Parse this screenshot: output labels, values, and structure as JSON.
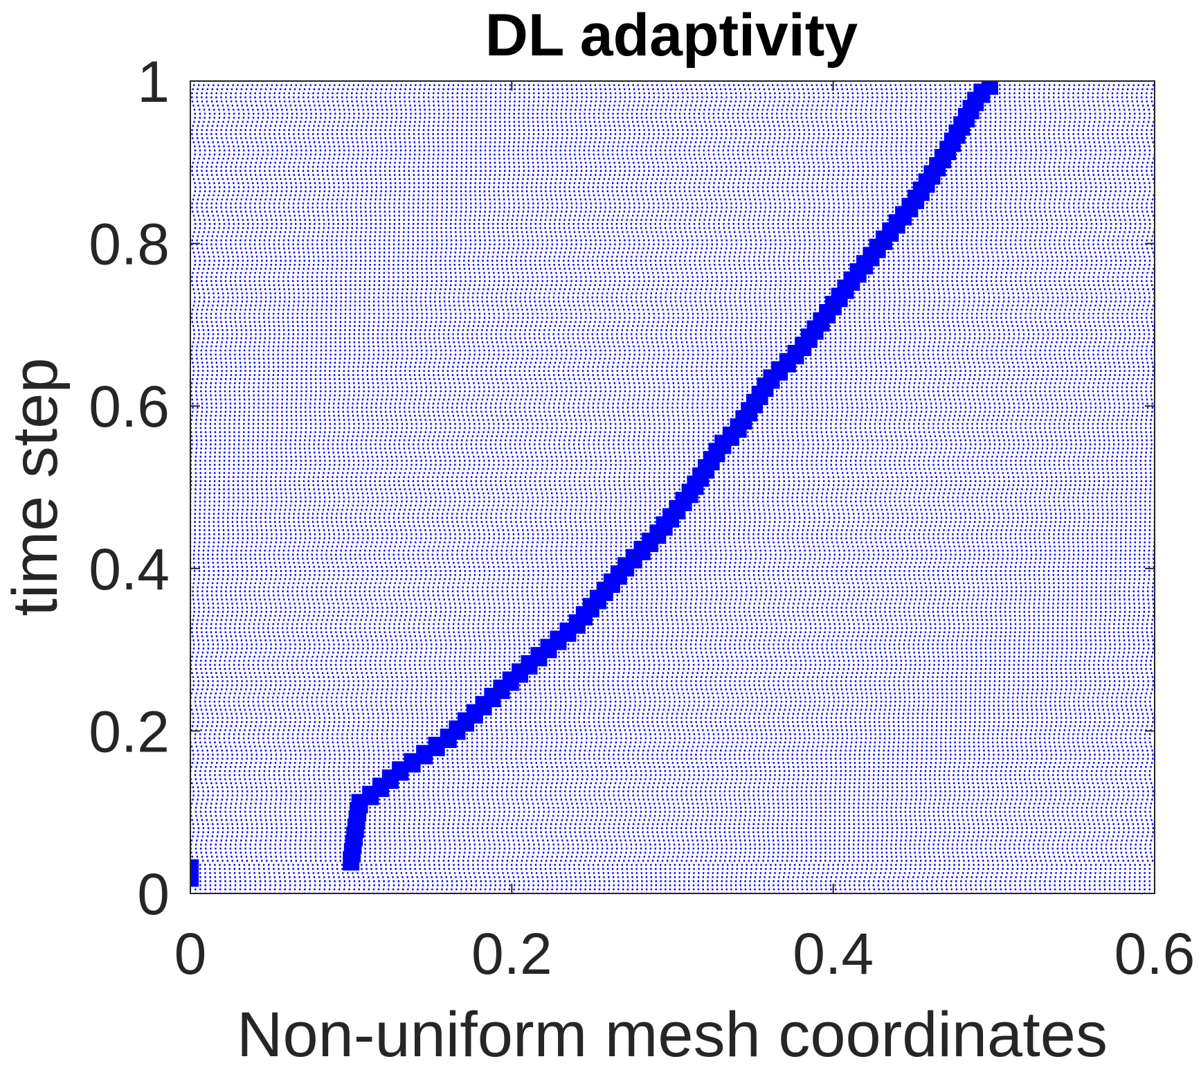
{
  "chart_data": {
    "type": "scatter",
    "title": "DL adaptivity",
    "xlabel": "Non-uniform mesh coordinates",
    "ylabel": "time step",
    "xlim": [
      0,
      0.6
    ],
    "ylim": [
      0,
      1
    ],
    "xticks": [
      0,
      0.2,
      0.4,
      0.6
    ],
    "yticks": [
      0,
      0.2,
      0.4,
      0.6,
      0.8,
      1
    ],
    "xtick_labels": [
      "0",
      "0.2",
      "0.4",
      "0.6"
    ],
    "ytick_labels": [
      "0",
      "0.2",
      "0.4",
      "0.6",
      "0.8",
      "1"
    ],
    "grid": false,
    "marker_color": "#0000ff",
    "axis_color": "#262626",
    "series": [
      {
        "mesh_points_per_time_step": 200,
        "time_steps": 200,
        "refinement_center": [
          [
            0,
            0.04
          ],
          [
            0.04,
            0.04
          ],
          [
            0.1,
            0.04
          ],
          [
            0.105,
            0.11
          ],
          [
            0.115,
            0.125
          ],
          [
            0.13,
            0.15
          ],
          [
            0.16,
            0.19
          ],
          [
            0.19,
            0.245
          ],
          [
            0.21,
            0.28
          ],
          [
            0.24,
            0.33
          ],
          [
            0.27,
            0.4
          ],
          [
            0.29,
            0.44
          ],
          [
            0.31,
            0.49
          ],
          [
            0.33,
            0.55
          ],
          [
            0.34,
            0.57
          ],
          [
            0.35,
            0.6
          ],
          [
            0.36,
            0.63
          ],
          [
            0.38,
            0.67
          ],
          [
            0.395,
            0.71
          ],
          [
            0.41,
            0.75
          ],
          [
            0.43,
            0.8
          ],
          [
            0.45,
            0.85
          ],
          [
            0.47,
            0.91
          ],
          [
            0.49,
            0.98
          ],
          [
            0.5,
            1.0
          ]
        ]
      }
    ]
  }
}
